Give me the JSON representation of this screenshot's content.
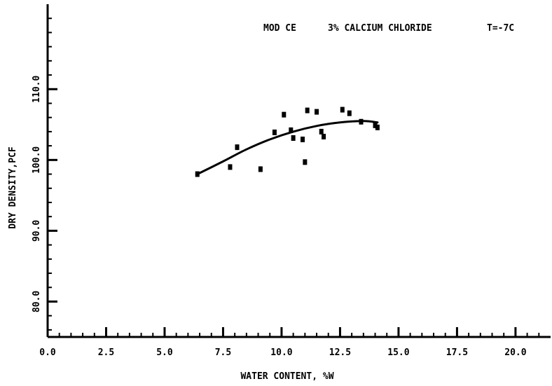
{
  "chart_data": {
    "type": "scatter",
    "title_parts": [
      "MOD CE",
      "3% CALCIUM CHLORIDE",
      "T=-7C"
    ],
    "xlabel": "WATER CONTENT, %W",
    "ylabel": "DRY DENSITY,PCF",
    "xlim": [
      0.0,
      21.5
    ],
    "ylim": [
      75.0,
      122.0
    ],
    "x_ticks": [
      "0.0",
      "2.5",
      "5.0",
      "7.5",
      "10.0",
      "12.5",
      "15.0",
      "17.5",
      "20.0"
    ],
    "x_tick_values": [
      0.0,
      2.5,
      5.0,
      7.5,
      10.0,
      12.5,
      15.0,
      17.5,
      20.0
    ],
    "y_ticks": [
      "80.0",
      "90.0",
      "100.0",
      "110.0"
    ],
    "y_tick_values": [
      80.0,
      90.0,
      100.0,
      110.0
    ],
    "grid": false,
    "series": [
      {
        "points": [
          [
            6.4,
            98.0
          ],
          [
            7.8,
            99.0
          ],
          [
            8.1,
            101.8
          ],
          [
            9.1,
            98.7
          ],
          [
            9.7,
            103.9
          ],
          [
            10.1,
            106.4
          ],
          [
            10.4,
            104.2
          ],
          [
            10.5,
            103.1
          ],
          [
            10.9,
            102.9
          ],
          [
            11.0,
            99.7
          ],
          [
            11.1,
            107.0
          ],
          [
            11.5,
            106.8
          ],
          [
            11.7,
            104.0
          ],
          [
            11.8,
            103.3
          ],
          [
            12.6,
            107.1
          ],
          [
            12.9,
            106.6
          ],
          [
            13.4,
            105.4
          ],
          [
            14.0,
            104.9
          ],
          [
            14.1,
            104.6
          ]
        ]
      },
      {
        "type": "line",
        "points": [
          [
            6.4,
            98.0
          ],
          [
            7.5,
            99.8
          ],
          [
            8.5,
            101.5
          ],
          [
            9.5,
            102.9
          ],
          [
            10.5,
            104.0
          ],
          [
            11.5,
            104.8
          ],
          [
            12.5,
            105.3
          ],
          [
            13.5,
            105.5
          ],
          [
            14.1,
            105.3
          ]
        ]
      }
    ]
  }
}
